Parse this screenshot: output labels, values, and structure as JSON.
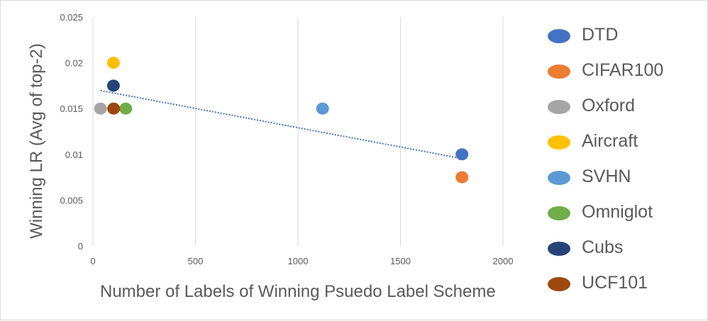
{
  "chart_data": {
    "type": "scatter",
    "xlabel": "Number of Labels of  Winning Psuedo Label Scheme",
    "ylabel": "Winning LR  (Avg of top-2)",
    "xlim": [
      0,
      2000
    ],
    "ylim": [
      0,
      0.025
    ],
    "x_ticks": [
      "0",
      "500",
      "1000",
      "1500",
      "2000"
    ],
    "y_ticks": [
      "0",
      "0.005",
      "0.01",
      "0.015",
      "0.02",
      "0.025"
    ],
    "grid": {
      "vertical": true,
      "horizontal": false
    },
    "legend_position": "right",
    "trendline": {
      "type": "linear",
      "style": "dotted",
      "color": "#4472c4"
    },
    "series": [
      {
        "name": "DTD",
        "color": "#4472c4",
        "points": [
          {
            "x": 1800,
            "y": 0.01
          }
        ]
      },
      {
        "name": "CIFAR100",
        "color": "#ed7d31",
        "points": [
          {
            "x": 1800,
            "y": 0.0075
          }
        ]
      },
      {
        "name": "Oxford",
        "color": "#a5a5a5",
        "points": [
          {
            "x": 37,
            "y": 0.015
          }
        ]
      },
      {
        "name": "Aircraft",
        "color": "#ffc000",
        "points": [
          {
            "x": 100,
            "y": 0.02
          }
        ]
      },
      {
        "name": "SVHN",
        "color": "#5b9bd5",
        "points": [
          {
            "x": 1120,
            "y": 0.015
          }
        ]
      },
      {
        "name": "Omniglot",
        "color": "#70ad47",
        "points": [
          {
            "x": 160,
            "y": 0.015
          }
        ]
      },
      {
        "name": "Cubs",
        "color": "#264478",
        "points": [
          {
            "x": 100,
            "y": 0.0175
          }
        ]
      },
      {
        "name": "UCF101",
        "color": "#9e480e",
        "points": [
          {
            "x": 101,
            "y": 0.015
          }
        ]
      }
    ]
  }
}
